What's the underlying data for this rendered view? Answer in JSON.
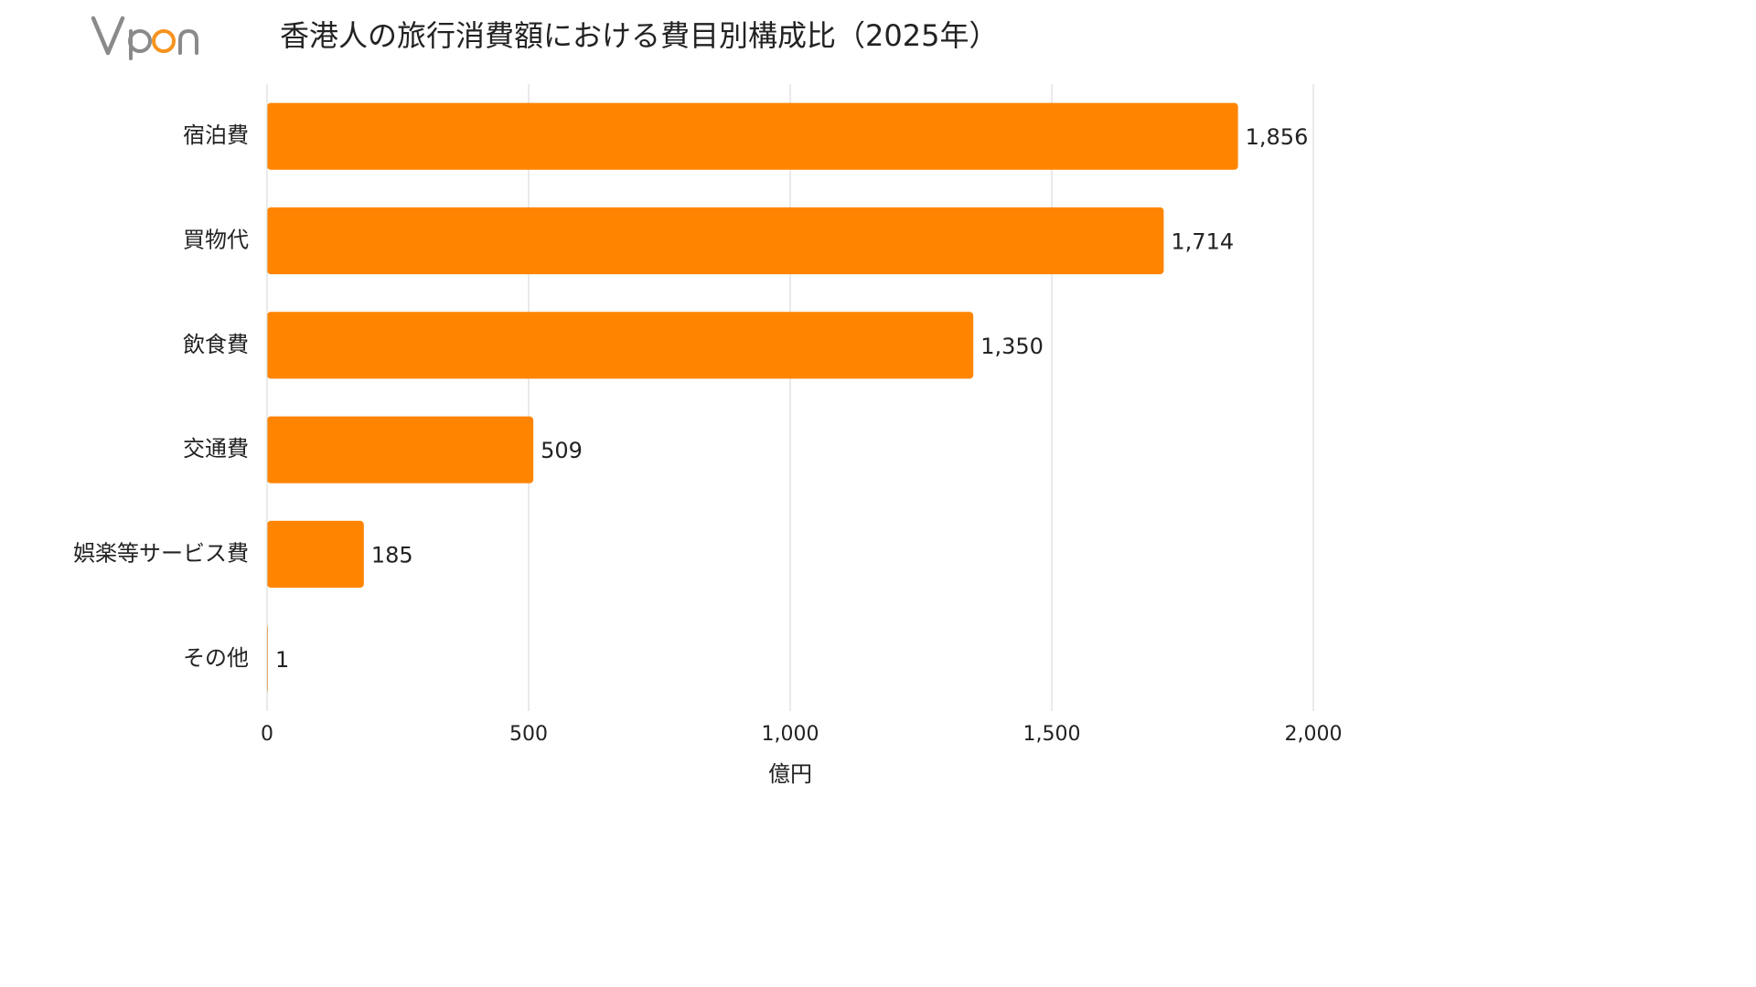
{
  "logo": {
    "text": "Vpon",
    "colors": {
      "text": "#8a8a8a",
      "accent": "#f7931e"
    }
  },
  "chart_data": {
    "type": "bar",
    "orientation": "horizontal",
    "title": "香港人の旅行消費額における費目別構成比（2025年）",
    "categories": [
      "宿泊費",
      "買物代",
      "飲食費",
      "交通費",
      "娯楽等サービス費",
      "その他"
    ],
    "values": [
      1856,
      1714,
      1350,
      509,
      185,
      1
    ],
    "value_labels": [
      "1,856",
      "1,714",
      "1,350",
      "509",
      "185",
      "1"
    ],
    "xlabel": "億円",
    "ylabel": "",
    "xlim": [
      0,
      2000
    ],
    "x_ticks": [
      0,
      500,
      1000,
      1500,
      2000
    ],
    "x_tick_labels": [
      "0",
      "500",
      "1,000",
      "1,500",
      "2,000"
    ],
    "grid": "vertical",
    "legend": "none",
    "bar_color": "#ff8500",
    "grid_color": "#d4d4d4"
  }
}
